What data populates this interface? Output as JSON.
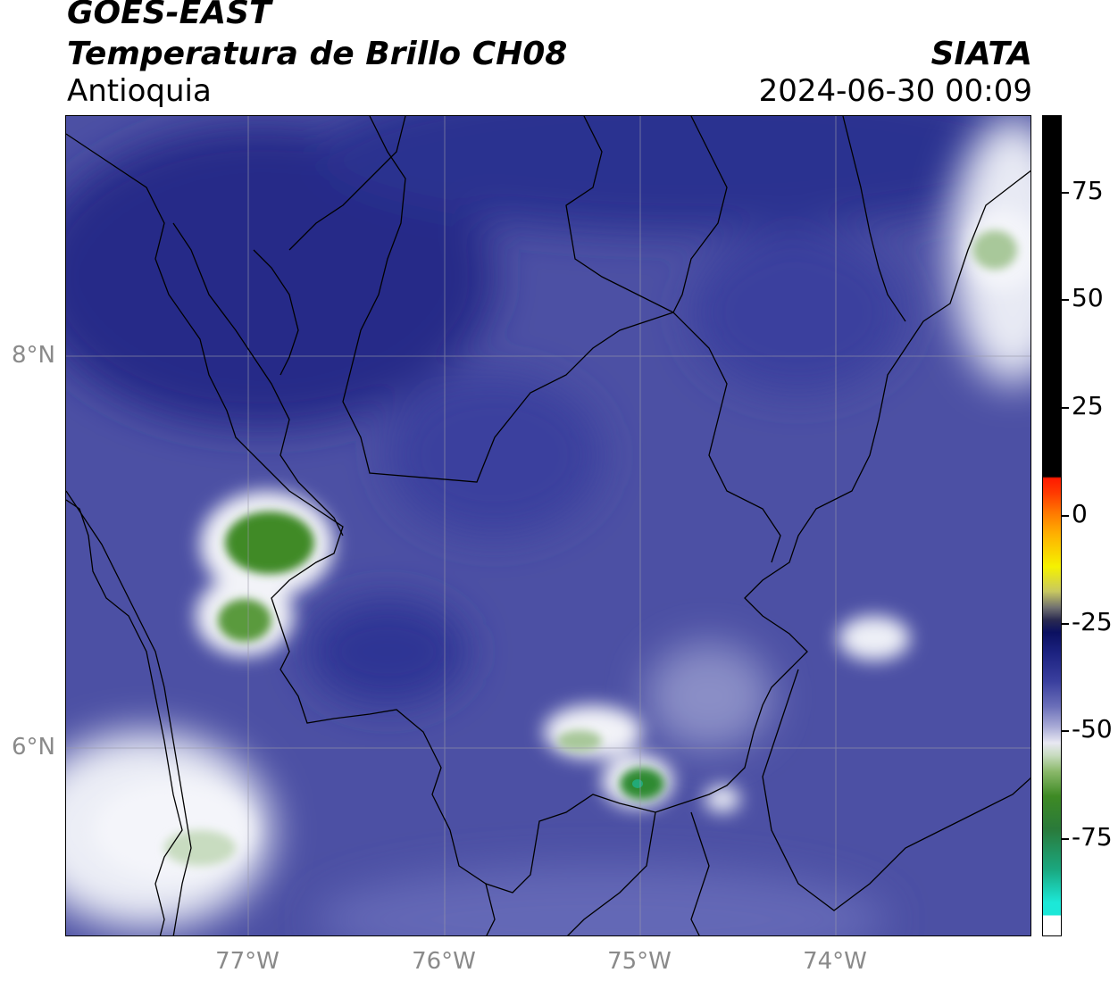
{
  "header": {
    "satellite": "GOES-EAST",
    "product": "Temperatura de Brillo CH08",
    "region": "Antioquia",
    "organization": "SIATA",
    "timestamp": "2024-06-30 00:09"
  },
  "axes": {
    "lat_labels": [
      "8°N",
      "6°N"
    ],
    "lon_labels": [
      "77°W",
      "76°W",
      "75°W",
      "74°W"
    ]
  },
  "colorbar": {
    "tick_labels": [
      "75",
      "50",
      "25",
      "0",
      "-25",
      "-50",
      "-75"
    ],
    "colors": {
      "black": "#000000",
      "red": "#ff1a00",
      "orange": "#ff9900",
      "yellow": "#f5f200",
      "dark_navy": "#0b1060",
      "blue": "#3a3f9e",
      "light": "#e8e8f2",
      "green": "#3e8a24",
      "cyan": "#1ce8d8"
    }
  }
}
